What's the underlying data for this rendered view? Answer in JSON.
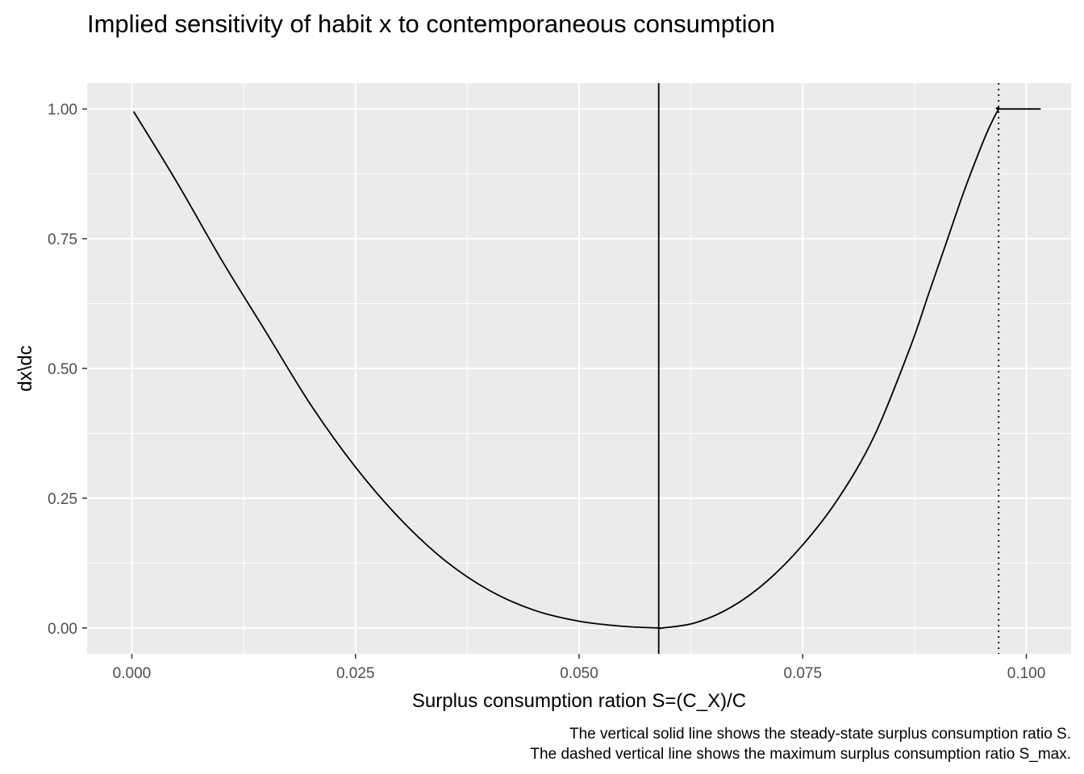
{
  "chart_data": {
    "type": "line",
    "title": "Implied sensitivity of habit x to contemporaneous consumption",
    "xlabel": "Surplus consumption ration S=(C_X)/C",
    "ylabel": "dx\\dc",
    "caption": [
      "The vertical solid line shows the steady-state surplus consumption ratio S.",
      "The dashed vertical line shows the maximum surplus consumption ratio S_max."
    ],
    "xlim": [
      -0.005,
      0.105
    ],
    "ylim": [
      -0.05,
      1.05
    ],
    "x_ticks": [
      0.0,
      0.025,
      0.05,
      0.075,
      0.1
    ],
    "x_tick_labels": [
      "0.000",
      "0.025",
      "0.050",
      "0.075",
      "0.100"
    ],
    "y_ticks": [
      0.0,
      0.25,
      0.5,
      0.75,
      1.0
    ],
    "y_tick_labels": [
      "0.00",
      "0.25",
      "0.50",
      "0.75",
      "1.00"
    ],
    "grid": true,
    "background": "#ebebeb",
    "line_color": "#000000",
    "series": [
      {
        "x": [
          0.0002,
          0.005,
          0.01,
          0.015,
          0.02,
          0.025,
          0.03,
          0.035,
          0.04,
          0.045,
          0.05,
          0.055,
          0.0588,
          0.0594,
          0.063,
          0.067,
          0.071,
          0.075,
          0.079,
          0.083,
          0.087,
          0.089,
          0.091,
          0.093,
          0.095,
          0.096,
          0.0969,
          0.097,
          0.1016
        ],
        "y": [
          0.995,
          0.86,
          0.71,
          0.57,
          0.43,
          0.31,
          0.21,
          0.13,
          0.072,
          0.034,
          0.013,
          0.003,
          0.0,
          0.0,
          0.01,
          0.04,
          0.09,
          0.16,
          0.25,
          0.37,
          0.54,
          0.64,
          0.74,
          0.84,
          0.93,
          0.97,
          1.0,
          1.0,
          1.0
        ]
      }
    ],
    "vlines": [
      {
        "x": 0.0589,
        "style": "solid"
      },
      {
        "x": 0.0969,
        "style": "dotted"
      }
    ]
  }
}
